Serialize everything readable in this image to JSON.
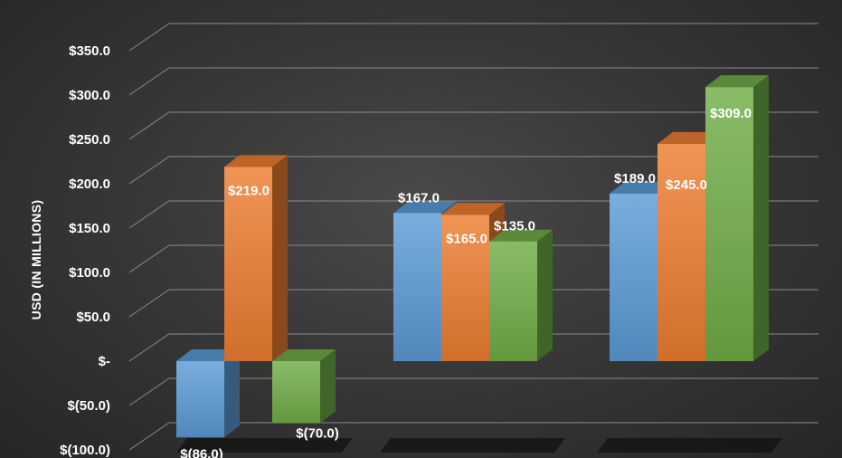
{
  "chart_data": {
    "type": "bar",
    "style": "3d-clustered-column",
    "ylabel": "USD (IN MILLIONS)",
    "ylim": [
      -100,
      350
    ],
    "yticks": [
      350,
      300,
      250,
      200,
      150,
      100,
      50,
      0,
      -50,
      -100
    ],
    "ytick_labels": [
      "$350.0",
      "$300.0",
      "$250.0",
      "$200.0",
      "$150.0",
      "$100.0",
      "$50.0",
      "$-",
      "$(50.0)",
      "$(100.0)"
    ],
    "categories": [
      "",
      "",
      ""
    ],
    "series": [
      {
        "color": "#5b9bd5",
        "values": [
          -86,
          167,
          189
        ],
        "labels": [
          "$(86.0)",
          "$167.0",
          "$189.0"
        ]
      },
      {
        "color": "#ed7d31",
        "values": [
          219,
          165,
          245
        ],
        "labels": [
          "$219.0",
          "$165.0",
          "$245.0"
        ]
      },
      {
        "color": "#70ad47",
        "values": [
          -70,
          135,
          309
        ],
        "labels": [
          "$(70.0)",
          "$135.0",
          "$309.0"
        ]
      }
    ],
    "grid": true,
    "background": "#3a3a3a",
    "text_color": "#ffffff"
  }
}
